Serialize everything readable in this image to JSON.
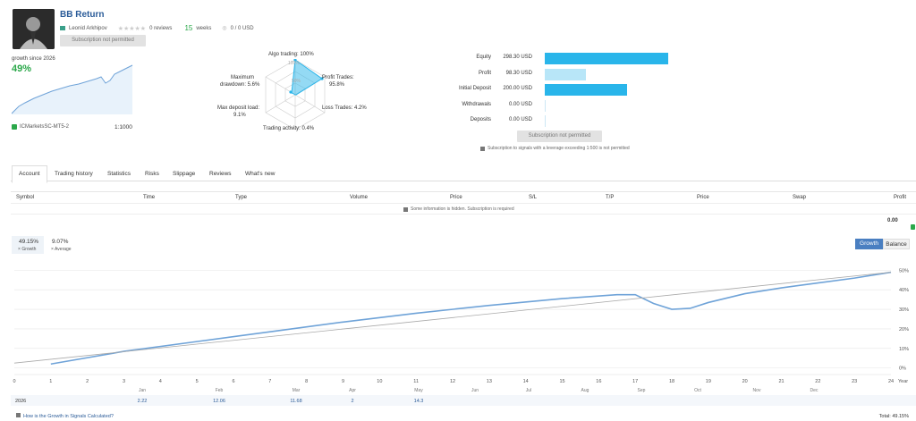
{
  "header": {
    "title": "BB Return",
    "author": "Leonid Arkhipov",
    "reviews": "0 reviews",
    "weeks_value": "15",
    "weeks_label": "weeks",
    "subscribers": "0 / 0 USD",
    "subscribe_label": "Subscription not permitted"
  },
  "growth": {
    "since_label": "growth since 2026",
    "value": "49%",
    "broker": "ICMarketsSC-MT5-2",
    "leverage": "1:1000"
  },
  "radar": {
    "algo": "Algo trading: 100%",
    "profit_trades": "Profit Trades:",
    "profit_trades_val": "95.8%",
    "loss_trades": "Loss Trades: 4.2%",
    "trading_activity": "Trading activity: 0.4%",
    "max_deposit_load": "Max deposit load:",
    "max_deposit_load_val": "9.1%",
    "max_drawdown": "Maximum",
    "max_drawdown_2": "drawdown: 5.6%",
    "inner_100": "100%",
    "inner_50": "50%"
  },
  "stats": [
    {
      "label": "Equity",
      "value": "298.30 USD",
      "ratio": 1.0
    },
    {
      "label": "Profit",
      "value": "98.30 USD",
      "ratio": 0.33,
      "light": true
    },
    {
      "label": "Initial Deposit",
      "value": "200.00 USD",
      "ratio": 0.67
    },
    {
      "label": "Withdrawals",
      "value": "0.00 USD",
      "ratio": 0
    },
    {
      "label": "Deposits",
      "value": "0.00 USD",
      "ratio": 0
    }
  ],
  "stats_button": "Subscription not permitted",
  "leverage_note": "Subscription to signals with a leverage exceeding 1:500 is not permitted",
  "tabs": [
    "Account",
    "Trading history",
    "Statistics",
    "Risks",
    "Slippage",
    "Reviews",
    "What's new"
  ],
  "table": {
    "headers": [
      "Symbol",
      "Time",
      "Type",
      "Volume",
      "Price",
      "S/L",
      "T/P",
      "Price",
      "Swap",
      "Profit"
    ],
    "hidden_note": "Some information is hidden. Subscription is required",
    "profit_total": "0.00"
  },
  "chart_summary": {
    "growth_value": "49.15%",
    "growth_label": "Growth",
    "average_value": "9.07%",
    "average_label": "Average",
    "toggle_growth": "Growth",
    "toggle_balance": "Balance"
  },
  "chart_data": {
    "type": "line",
    "x_ticks": [
      "0",
      "1",
      "2",
      "3",
      "4",
      "5",
      "6",
      "7",
      "8",
      "9",
      "10",
      "11",
      "12",
      "13",
      "14",
      "15",
      "16",
      "17",
      "18",
      "19",
      "20",
      "21",
      "22",
      "23",
      "24"
    ],
    "y_ticks": [
      "50%",
      "40%",
      "30%",
      "20%",
      "10%",
      "0%"
    ],
    "ylim": [
      -2,
      52
    ],
    "series": [
      {
        "name": "Growth",
        "color": "#6fa3d8",
        "x": [
          1,
          3,
          5,
          7,
          9,
          11,
          13,
          15,
          16.5,
          17,
          17.5,
          18,
          18.5,
          19,
          20,
          21,
          22,
          23,
          24
        ],
        "y": [
          2,
          8.5,
          13.5,
          18.5,
          23.5,
          28,
          32,
          35.5,
          37.5,
          37.5,
          33,
          30,
          30.5,
          33.5,
          38,
          41,
          43.5,
          46,
          49
        ]
      },
      {
        "name": "Average",
        "color": "#aaaaaa",
        "x": [
          0,
          24
        ],
        "y": [
          2.5,
          49
        ]
      }
    ],
    "months": [
      "Jan",
      "Feb",
      "Mar",
      "Apr",
      "May",
      "Jun",
      "Jul",
      "Aug",
      "Sep",
      "Oct",
      "Nov",
      "Dec"
    ],
    "year_label": "Year",
    "row_year": "2026",
    "row_values": [
      "2.22",
      "12.06",
      "11.68",
      "2",
      "14.3",
      "",
      "",
      "",
      "",
      "",
      "",
      ""
    ],
    "total": "Total: 49.15%"
  },
  "footer_link": "How is the Growth in Signals Calculated?"
}
